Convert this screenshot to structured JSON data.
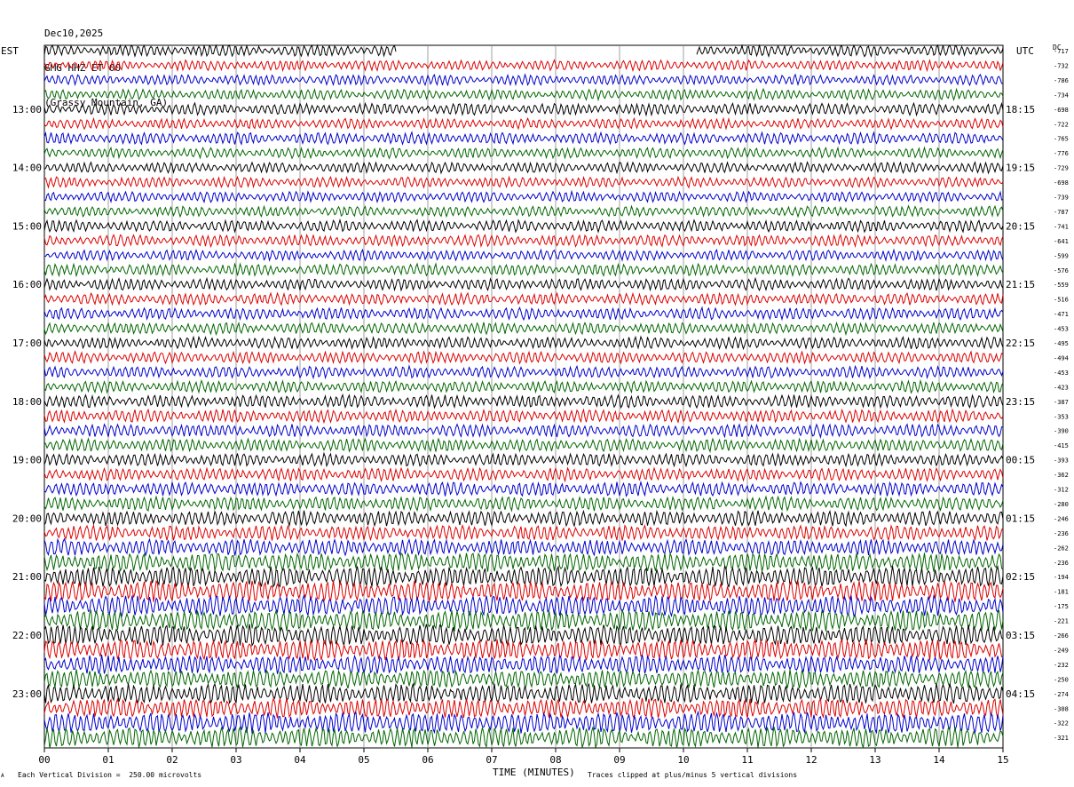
{
  "header": {
    "date": "Dec10,2025",
    "station": "GMG HHZ ET 00",
    "location": "(Grassy Mountain, GA)"
  },
  "left_tz": "EST",
  "right_tz": "UTC",
  "dc_label": "DC",
  "footer": {
    "scale": "Each Vertical Division =  250.00 microvolts",
    "clip": "Traces clipped at plus/minus 5 vertical divisions",
    "corner_mark": "A"
  },
  "chart_data": {
    "type": "helicorder",
    "xlabel": "TIME (MINUTES)",
    "x_ticks": [
      "00",
      "01",
      "02",
      "03",
      "04",
      "05",
      "06",
      "07",
      "08",
      "09",
      "10",
      "11",
      "12",
      "13",
      "14",
      "15"
    ],
    "xlim": [
      0,
      15
    ],
    "trace_colors": [
      "#000000",
      "#dd0000",
      "#0000cc",
      "#006600"
    ],
    "left_hour_labels": [
      "13:00",
      "14:00",
      "15:00",
      "16:00",
      "17:00",
      "18:00",
      "19:00",
      "20:00",
      "21:00",
      "22:00",
      "23:00"
    ],
    "right_hour_labels": [
      "18:15",
      "19:15",
      "20:15",
      "21:15",
      "22:15",
      "23:15",
      "00:15",
      "01:15",
      "02:15",
      "03:15",
      "04:15"
    ],
    "hour_label_first_trace": 4,
    "dc_offsets": [
      -717,
      -732,
      -786,
      -734,
      -698,
      -722,
      -765,
      -776,
      -729,
      -698,
      -739,
      -787,
      -741,
      -641,
      -599,
      -576,
      -559,
      -516,
      -471,
      -453,
      -495,
      -494,
      -453,
      -423,
      -387,
      -353,
      -390,
      -415,
      -393,
      -362,
      -312,
      -280,
      -246,
      -236,
      -262,
      -236,
      -194,
      -181,
      -175,
      -221,
      -266,
      -249,
      -232,
      -250,
      -274,
      -308,
      -322,
      -321
    ],
    "trace_amplitude_scale": [
      1.0,
      0.9,
      0.9,
      0.9,
      1.0,
      0.9,
      1.0,
      0.9,
      0.9,
      0.9,
      0.9,
      0.9,
      1.0,
      1.0,
      0.9,
      1.0,
      1.0,
      1.0,
      1.0,
      1.0,
      1.0,
      1.0,
      1.0,
      1.0,
      1.1,
      1.1,
      1.1,
      1.1,
      1.1,
      1.1,
      1.2,
      1.2,
      1.3,
      1.3,
      1.4,
      1.6,
      1.8,
      1.8,
      1.8,
      1.8,
      1.8,
      1.8,
      1.6,
      1.6,
      1.7,
      1.7,
      1.8,
      1.8
    ],
    "first_trace_gap_minutes": [
      5.5,
      10.2
    ]
  }
}
